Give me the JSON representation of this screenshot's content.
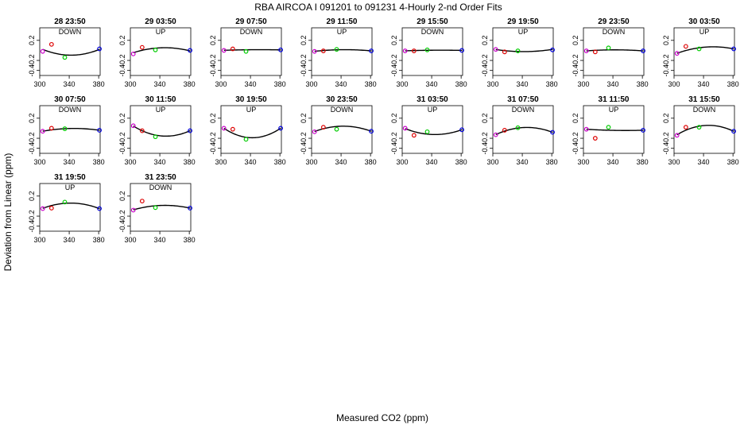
{
  "chart_data": {
    "type": "scatter",
    "title": "RBA   AIRCOA I   091201 to 091231   4-Hourly 2-nd Order Fits",
    "xlabel": "Measured CO2 (ppm)",
    "ylabel": "Deviation from Linear (ppm)",
    "xlim": [
      300,
      382
    ],
    "ylim": [
      -0.5,
      0.45
    ],
    "xticks": [
      "300",
      "340",
      "380"
    ],
    "yticks": [
      "0.2",
      "-0.2",
      "-0.4"
    ],
    "standard_x": [
      304,
      316,
      334,
      381
    ],
    "point_colors": [
      "#cc00cc",
      "#dd0000",
      "#00cc00",
      "#0000dd"
    ],
    "curve_color": "#000000",
    "layout": "4x8 small multiples",
    "panels": [
      {
        "time": "28 23:50",
        "dir": "DOWN",
        "points": [
          -0.02,
          0.12,
          -0.14,
          0.03
        ],
        "curve": [
          0.02,
          -0.04,
          -0.09,
          0.02
        ]
      },
      {
        "time": "29 03:50",
        "dir": "UP",
        "points": [
          -0.07,
          0.06,
          0.01,
          0.0
        ],
        "curve": [
          -0.05,
          0.01,
          0.04,
          -0.01
        ]
      },
      {
        "time": "29 07:50",
        "dir": "DOWN",
        "points": [
          0.0,
          0.03,
          -0.02,
          0.01
        ],
        "curve": [
          0.0,
          0.01,
          0.01,
          0.01
        ]
      },
      {
        "time": "29 11:50",
        "dir": "UP",
        "points": [
          -0.02,
          -0.01,
          0.02,
          -0.01
        ],
        "curve": [
          -0.02,
          0.0,
          0.01,
          -0.01
        ]
      },
      {
        "time": "29 15:50",
        "dir": "DOWN",
        "points": [
          -0.01,
          -0.01,
          0.01,
          0.0
        ],
        "curve": [
          -0.01,
          0.0,
          0.0,
          0.0
        ]
      },
      {
        "time": "29 19:50",
        "dir": "UP",
        "points": [
          0.02,
          -0.03,
          -0.01,
          0.01
        ],
        "curve": [
          0.02,
          -0.01,
          -0.02,
          0.02
        ]
      },
      {
        "time": "29 23:50",
        "dir": "DOWN",
        "points": [
          -0.01,
          -0.03,
          0.05,
          -0.01
        ],
        "curve": [
          -0.01,
          0.0,
          0.01,
          -0.01
        ]
      },
      {
        "time": "30 03:50",
        "dir": "UP",
        "points": [
          -0.06,
          0.08,
          0.03,
          0.03
        ],
        "curve": [
          -0.06,
          0.0,
          0.05,
          0.03
        ]
      },
      {
        "time": "30 07:50",
        "dir": "DOWN",
        "points": [
          -0.06,
          0.0,
          -0.01,
          -0.04
        ],
        "curve": [
          -0.06,
          -0.03,
          -0.01,
          -0.04
        ]
      },
      {
        "time": "30 11:50",
        "dir": "UP",
        "points": [
          0.05,
          -0.05,
          -0.17,
          -0.05
        ],
        "curve": [
          0.05,
          -0.06,
          -0.13,
          -0.05
        ]
      },
      {
        "time": "30 19:50",
        "dir": "UP",
        "points": [
          0.0,
          -0.02,
          -0.22,
          0.0
        ],
        "curve": [
          0.0,
          -0.1,
          -0.18,
          0.0
        ]
      },
      {
        "time": "30 23:50",
        "dir": "DOWN",
        "points": [
          -0.07,
          0.02,
          -0.02,
          -0.06
        ],
        "curve": [
          -0.07,
          0.0,
          0.03,
          -0.06
        ]
      },
      {
        "time": "31 03:50",
        "dir": "UP",
        "points": [
          0.0,
          -0.14,
          -0.07,
          -0.03
        ],
        "curve": [
          0.0,
          -0.08,
          -0.11,
          -0.03
        ]
      },
      {
        "time": "31 07:50",
        "dir": "DOWN",
        "points": [
          -0.13,
          -0.04,
          0.01,
          -0.08
        ],
        "curve": [
          -0.13,
          -0.05,
          0.0,
          -0.08
        ]
      },
      {
        "time": "31 11:50",
        "dir": "UP",
        "points": [
          -0.02,
          -0.2,
          0.02,
          -0.04
        ],
        "curve": [
          -0.02,
          -0.03,
          -0.04,
          -0.04
        ]
      },
      {
        "time": "31 15:50",
        "dir": "DOWN",
        "points": [
          -0.14,
          0.02,
          0.02,
          -0.06
        ],
        "curve": [
          -0.14,
          -0.02,
          0.03,
          -0.06
        ]
      },
      {
        "time": "31 19:50",
        "dir": "UP",
        "points": [
          -0.05,
          -0.04,
          0.08,
          -0.05
        ],
        "curve": [
          -0.05,
          0.02,
          0.05,
          -0.05
        ]
      },
      {
        "time": "31 23:50",
        "dir": "DOWN",
        "points": [
          -0.08,
          0.1,
          -0.03,
          -0.04
        ],
        "curve": [
          -0.08,
          -0.02,
          0.0,
          -0.04
        ]
      }
    ]
  }
}
